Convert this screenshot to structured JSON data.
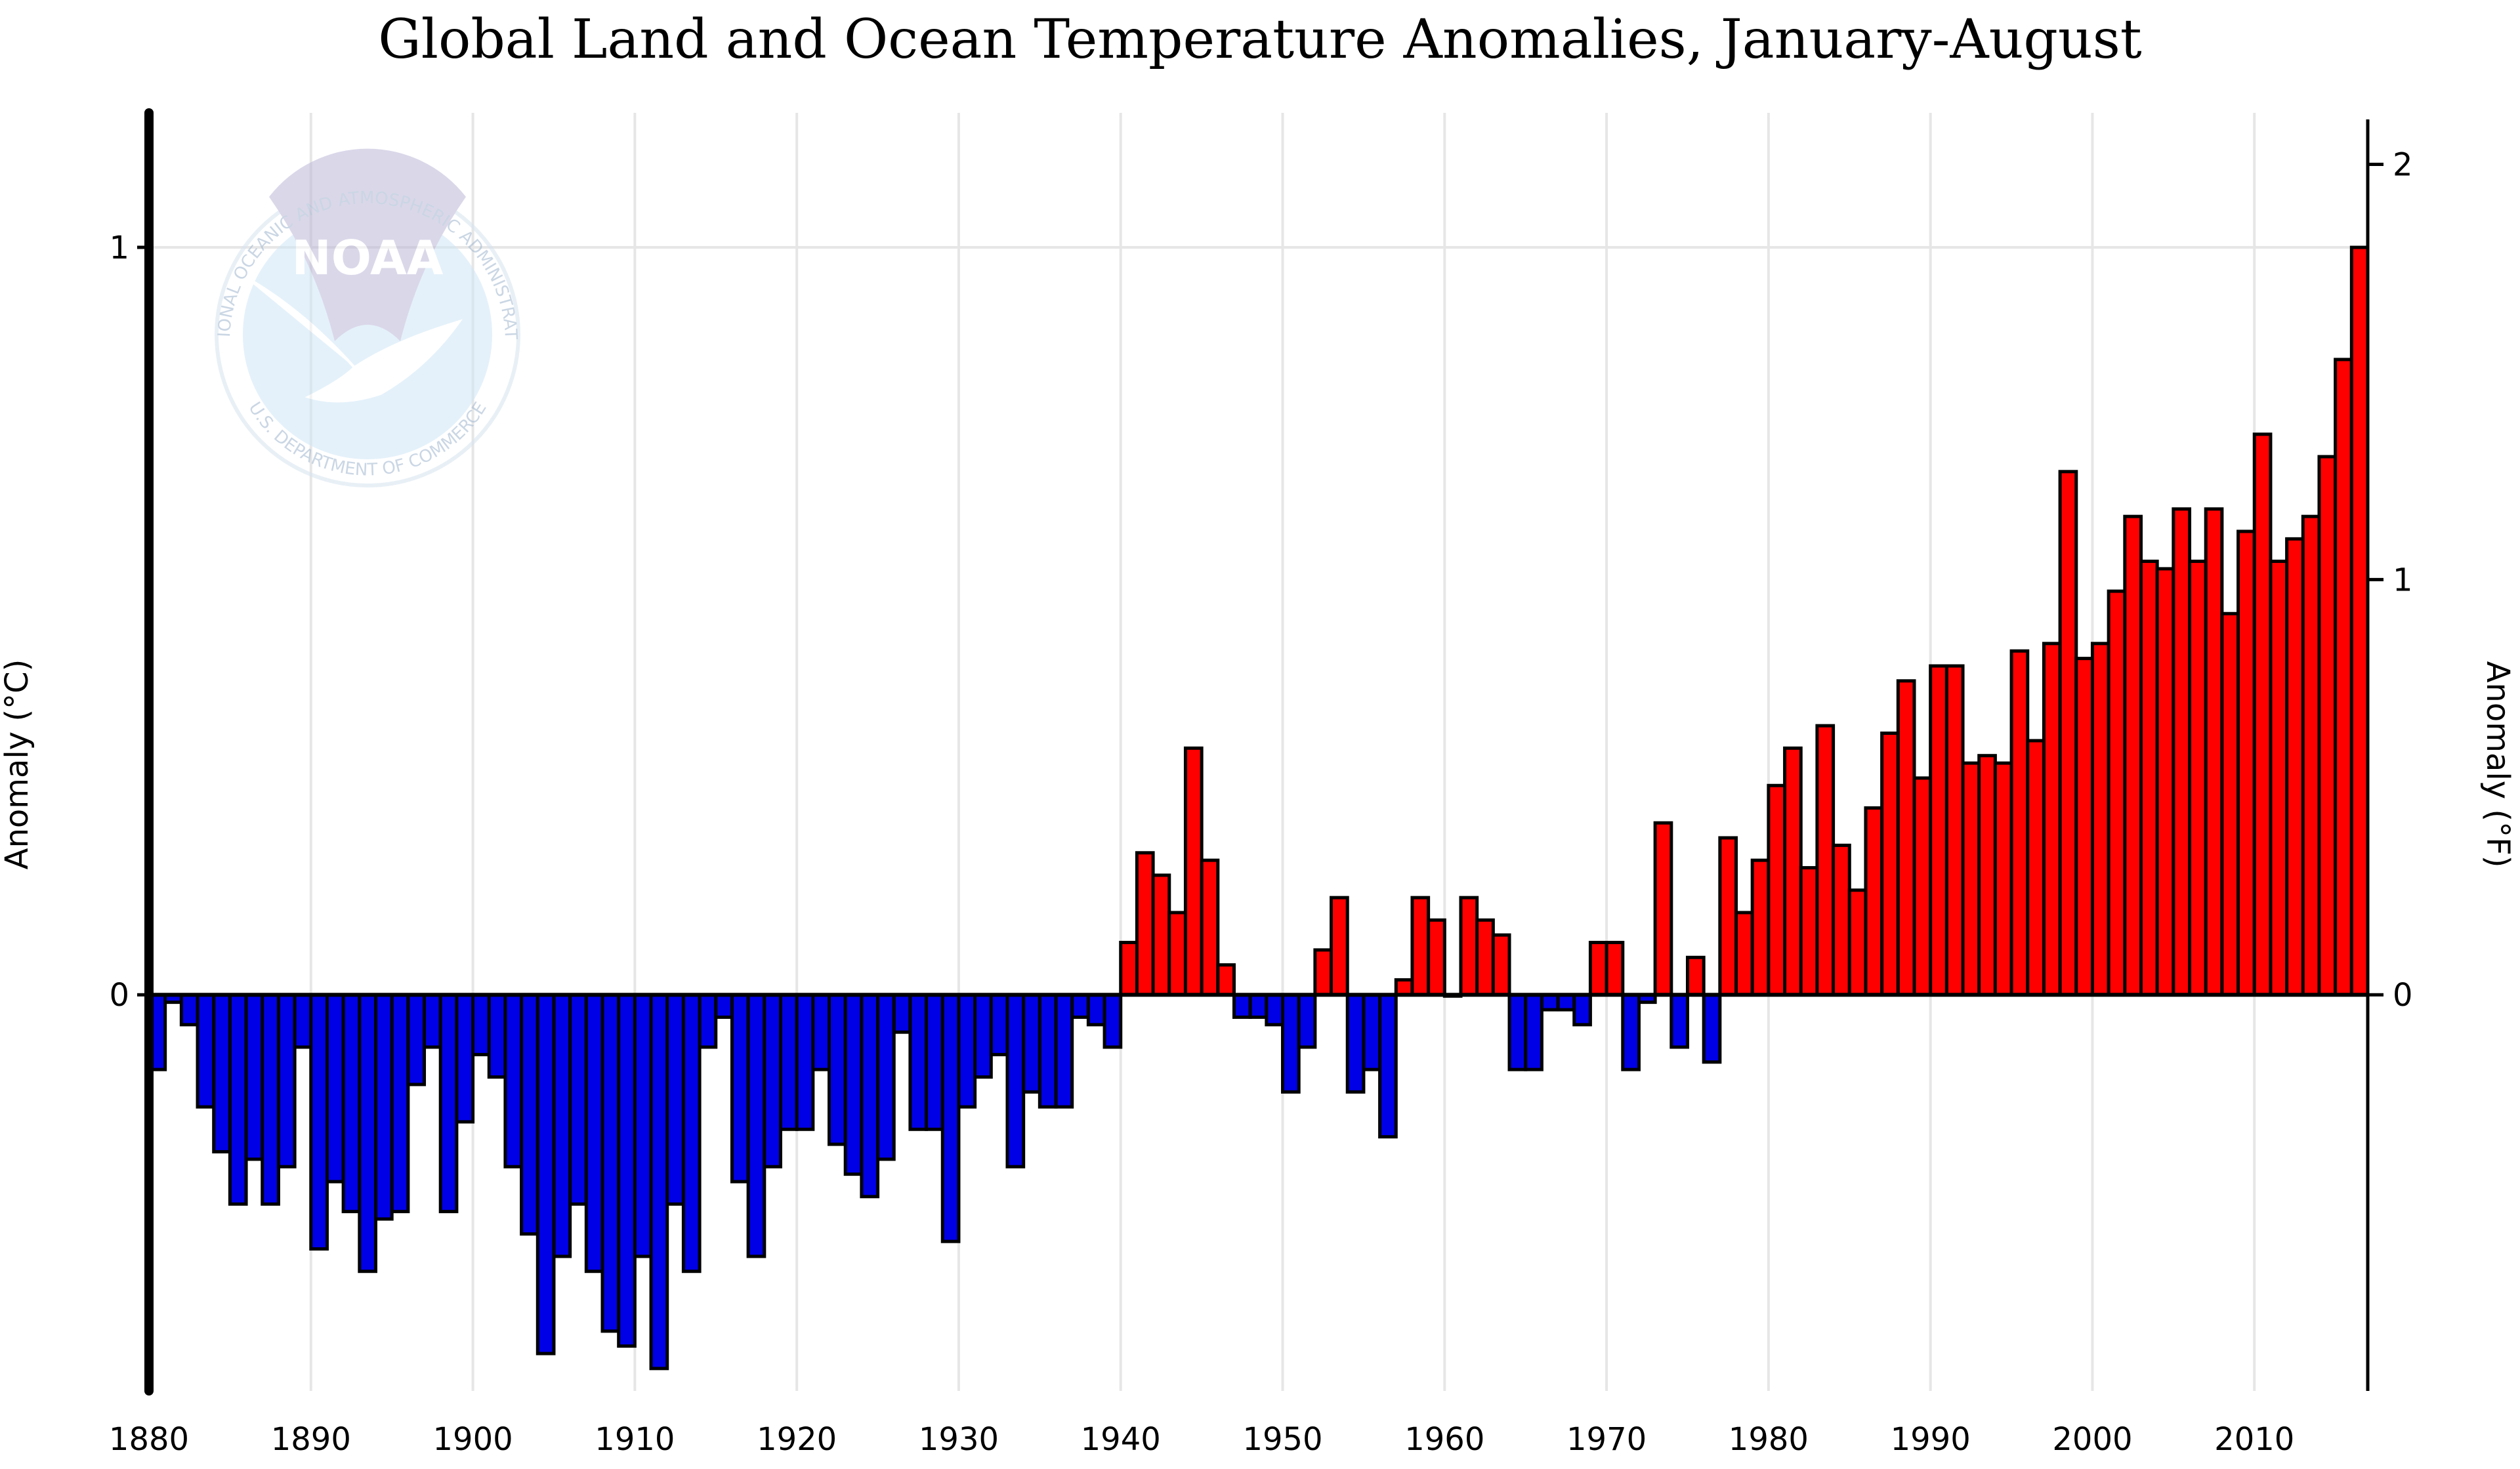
{
  "chart_data": {
    "type": "bar",
    "title": "Global Land and Ocean Temperature Anomalies, January-August",
    "ylabel": "Anomaly (°C)",
    "ylabel_right": "Anomaly (°F)",
    "xlim": [
      1880,
      2016
    ],
    "ylim": [
      -0.53,
      1.18
    ],
    "y_ticks": [
      0,
      1
    ],
    "y_ticks_right": [
      0,
      1,
      2
    ],
    "x_ticks": [
      1880,
      1890,
      1900,
      1910,
      1920,
      1930,
      1940,
      1950,
      1960,
      1970,
      1980,
      1990,
      2000,
      2010
    ],
    "grid": "vertical and horizontal gridlines",
    "logo_text": "NOAA",
    "logo_ring_text": "NATIONAL OCEANIC AND ATMOSPHERIC ADMINISTRATION",
    "logo_ring_text_bottom": "U.S. DEPARTMENT OF COMMERCE",
    "colors": {
      "positive": "#ff0000",
      "negative": "#0000e6"
    },
    "series": [
      {
        "x": [
          1880,
          1881,
          1882,
          1883,
          1884,
          1885,
          1886,
          1887,
          1888,
          1889,
          1890,
          1891,
          1892,
          1893,
          1894,
          1895,
          1896,
          1897,
          1898,
          1899,
          1900,
          1901,
          1902,
          1903,
          1904,
          1905,
          1906,
          1907,
          1908,
          1909,
          1910,
          1911,
          1912,
          1913,
          1914,
          1915,
          1916,
          1917,
          1918,
          1919,
          1920,
          1921,
          1922,
          1923,
          1924,
          1925,
          1926,
          1927,
          1928,
          1929,
          1930,
          1931,
          1932,
          1933,
          1934,
          1935,
          1936,
          1937,
          1938,
          1939,
          1940,
          1941,
          1942,
          1943,
          1944,
          1945,
          1946,
          1947,
          1948,
          1949,
          1950,
          1951,
          1952,
          1953,
          1954,
          1955,
          1956,
          1957,
          1958,
          1959,
          1960,
          1961,
          1962,
          1963,
          1964,
          1965,
          1966,
          1967,
          1968,
          1969,
          1970,
          1971,
          1972,
          1973,
          1974,
          1975,
          1976,
          1977,
          1978,
          1979,
          1980,
          1981,
          1982,
          1983,
          1984,
          1985,
          1986,
          1987,
          1988,
          1989,
          1990,
          1991,
          1992,
          1993,
          1994,
          1995,
          1996,
          1997,
          1998,
          1999,
          2000,
          2001,
          2002,
          2003,
          2004,
          2005,
          2006,
          2007,
          2008,
          2009,
          2010,
          2011,
          2012,
          2013,
          2014,
          2015,
          2016
        ],
        "values": [
          -0.1,
          -0.01,
          -0.04,
          -0.15,
          -0.21,
          -0.28,
          -0.22,
          -0.28,
          -0.23,
          -0.07,
          -0.34,
          -0.25,
          -0.29,
          -0.37,
          -0.3,
          -0.29,
          -0.12,
          -0.07,
          -0.29,
          -0.17,
          -0.08,
          -0.11,
          -0.23,
          -0.32,
          -0.48,
          -0.35,
          -0.28,
          -0.37,
          -0.45,
          -0.47,
          -0.35,
          -0.5,
          -0.28,
          -0.37,
          -0.07,
          -0.03,
          -0.25,
          -0.35,
          -0.23,
          -0.18,
          -0.18,
          -0.1,
          -0.2,
          -0.24,
          -0.27,
          -0.22,
          -0.05,
          -0.18,
          -0.18,
          -0.33,
          -0.15,
          -0.11,
          -0.08,
          -0.23,
          -0.13,
          -0.15,
          -0.15,
          -0.03,
          -0.04,
          -0.07,
          0.07,
          0.19,
          0.16,
          0.11,
          0.33,
          0.18,
          0.04,
          -0.03,
          -0.03,
          -0.04,
          -0.13,
          -0.07,
          0.06,
          0.13,
          -0.13,
          -0.1,
          -0.19,
          0.02,
          0.13,
          0.1,
          0.0,
          0.13,
          0.1,
          0.08,
          -0.1,
          -0.1,
          -0.02,
          -0.02,
          -0.04,
          0.07,
          0.07,
          -0.1,
          -0.01,
          0.23,
          -0.07,
          0.05,
          -0.09,
          0.21,
          0.11,
          0.18,
          0.28,
          0.33,
          0.17,
          0.36,
          0.2,
          0.14,
          0.25,
          0.35,
          0.42,
          0.29,
          0.44,
          0.44,
          0.31,
          0.32,
          0.31,
          0.46,
          0.34,
          0.47,
          0.7,
          0.45,
          0.47,
          0.54,
          0.64,
          0.58,
          0.57,
          0.65,
          0.58,
          0.65,
          0.51,
          0.62,
          0.75,
          0.58,
          0.61,
          0.64,
          0.72,
          0.85,
          1.0
        ]
      }
    ]
  }
}
